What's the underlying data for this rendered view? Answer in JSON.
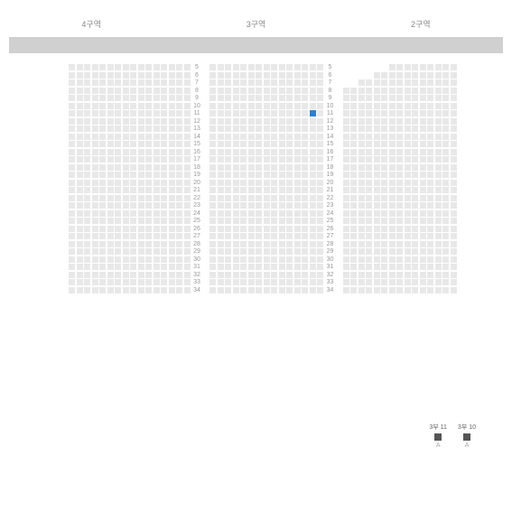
{
  "colors": {
    "seat_default": "#e8e8e8",
    "seat_selected": "#2980d6",
    "seat_empty": "transparent",
    "gray_bar": "#d0d0d0",
    "background": "#ffffff",
    "text_muted": "#888",
    "text_light": "#999",
    "legend_dark": "#555"
  },
  "sections": {
    "headers": [
      "4구역",
      "3구역",
      "2구역"
    ],
    "section_a": {
      "cols": 16,
      "rows": 30,
      "row_labels_start": 5,
      "show_left_labels": true
    },
    "section_b": {
      "cols": 15,
      "rows": 30,
      "row_labels_start": 5,
      "selected": {
        "row": 11,
        "col": 13
      }
    },
    "section_c": {
      "cols": 15,
      "rows": 30,
      "row_labels_start": 5,
      "special_rows": {
        "3": 10,
        "4": 12
      }
    }
  },
  "row_labels": [
    "5",
    "6",
    "7",
    "8",
    "9",
    "10",
    "11",
    "12",
    "13",
    "14",
    "15",
    "16",
    "17",
    "18",
    "19",
    "20",
    "21",
    "22",
    "23",
    "24",
    "25",
    "26",
    "27",
    "28",
    "29",
    "30",
    "31",
    "32",
    "33",
    "34"
  ],
  "legend": {
    "items": [
      {
        "top": "3부 11",
        "swatch": "dark",
        "bot": "A"
      },
      {
        "top": "3부 10",
        "swatch": "dark",
        "bot": "A"
      }
    ]
  }
}
